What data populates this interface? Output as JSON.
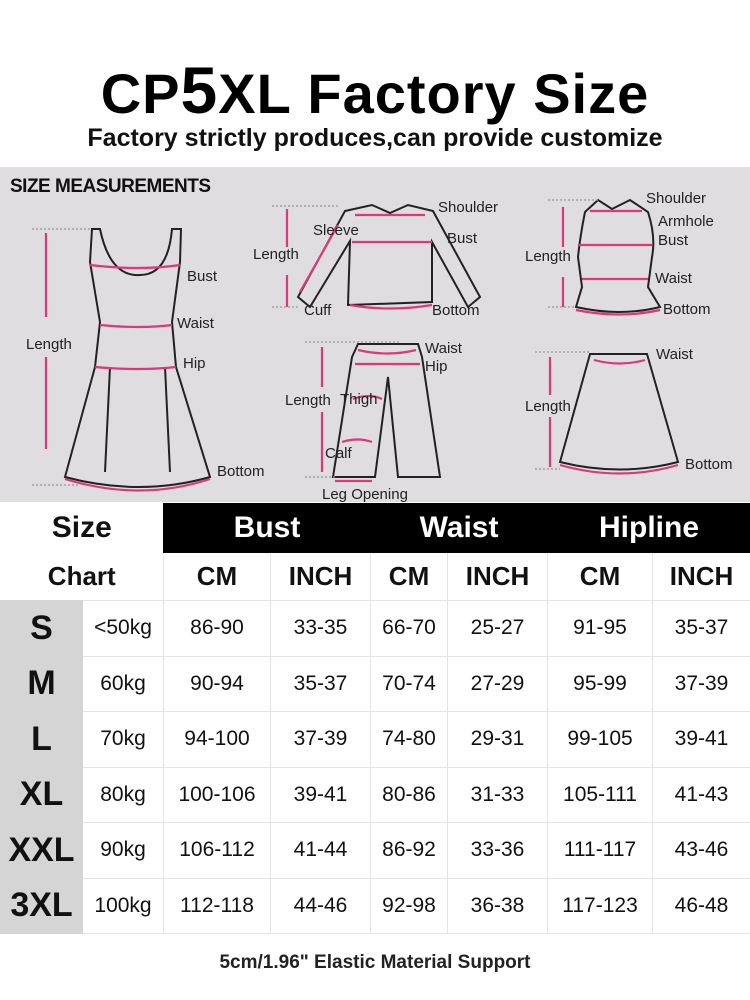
{
  "header": {
    "title_prefix": "CP",
    "title_big": "5",
    "title_suffix": "XL Factory Size",
    "subtitle": "Factory strictly produces,can provide customize"
  },
  "diagram": {
    "heading": "SIZE MEASUREMENTS",
    "dress": {
      "length": "Length",
      "bust": "Bust",
      "waist": "Waist",
      "hip": "Hip",
      "bottom": "Bottom"
    },
    "shirt": {
      "length": "Length",
      "sleeve": "Sleeve",
      "shoulder": "Shoulder",
      "bust": "Bust",
      "cuff": "Cuff",
      "bottom": "Bottom"
    },
    "tank": {
      "length": "Length",
      "shoulder": "Shoulder",
      "armhole": "Armhole",
      "bust": "Bust",
      "waist": "Waist",
      "bottom": "Bottom"
    },
    "pants": {
      "length": "Length",
      "thigh": "Thigh",
      "waist": "Waist",
      "hip": "Hip",
      "calf": "Calf",
      "leg_opening": "Leg Opening"
    },
    "skirt": {
      "length": "Length",
      "waist": "Waist",
      "bottom": "Bottom"
    },
    "accent_color": "#d83a7a"
  },
  "table": {
    "size_label_1": "Size",
    "size_label_2": "Chart",
    "groups": [
      "Bust",
      "Waist",
      "Hipline"
    ],
    "units": [
      "CM",
      "INCH",
      "CM",
      "INCH",
      "CM",
      "INCH"
    ],
    "rows": [
      {
        "size": "S",
        "weight": "<50kg",
        "values": [
          "86-90",
          "33-35",
          "66-70",
          "25-27",
          "91-95",
          "35-37"
        ]
      },
      {
        "size": "M",
        "weight": "60kg",
        "values": [
          "90-94",
          "35-37",
          "70-74",
          "27-29",
          "95-99",
          "37-39"
        ]
      },
      {
        "size": "L",
        "weight": "70kg",
        "values": [
          "94-100",
          "37-39",
          "74-80",
          "29-31",
          "99-105",
          "39-41"
        ]
      },
      {
        "size": "XL",
        "weight": "80kg",
        "values": [
          "100-106",
          "39-41",
          "80-86",
          "31-33",
          "105-111",
          "41-43"
        ]
      },
      {
        "size": "XXL",
        "weight": "90kg",
        "values": [
          "106-112",
          "41-44",
          "86-92",
          "33-36",
          "111-117",
          "43-46"
        ]
      },
      {
        "size": "3XL",
        "weight": "100kg",
        "values": [
          "112-118",
          "44-46",
          "92-98",
          "36-38",
          "117-123",
          "46-48"
        ]
      }
    ]
  },
  "footer": "5cm/1.96\" Elastic Material Support"
}
